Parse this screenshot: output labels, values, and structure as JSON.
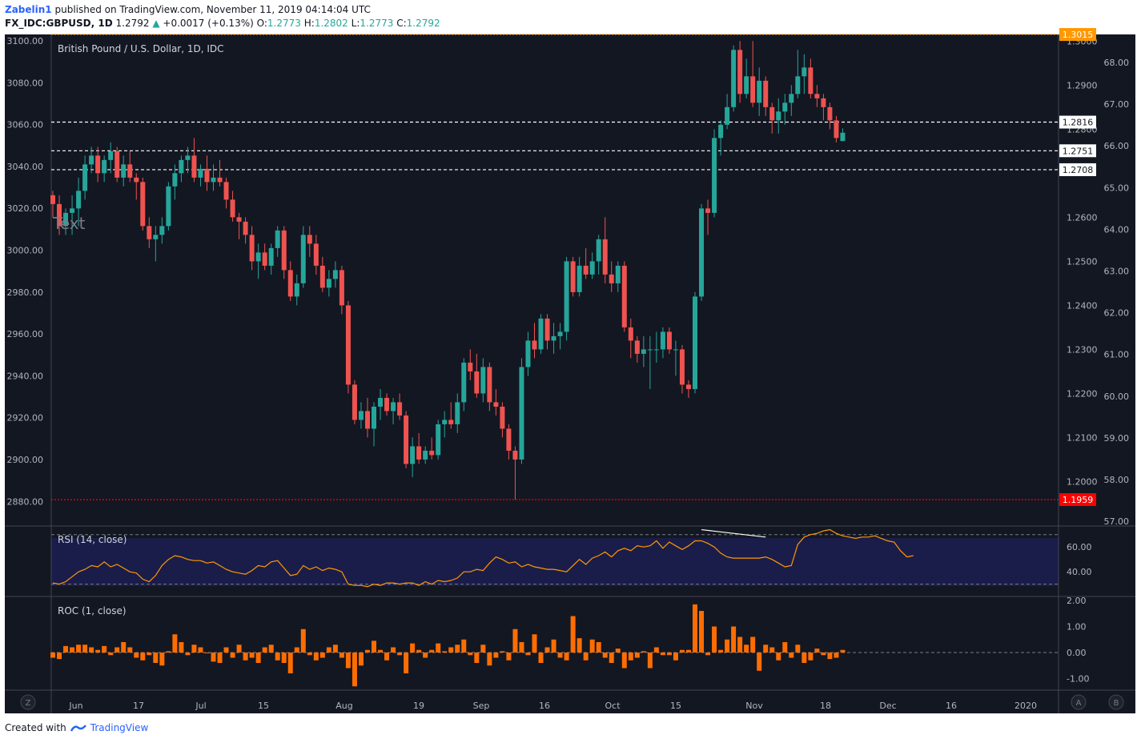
{
  "header": {
    "author": "Zabelin1",
    "published": "published on TradingView.com, November 11, 2019 04:14:04 UTC",
    "symbol": "FX_IDC:GBPUSD, 1D",
    "last": "1.2792",
    "change": "+0.0017 (+0.13%)",
    "o_label": "O:",
    "o": "1.2773",
    "h_label": "H:",
    "h": "1.2802",
    "l_label": "L:",
    "l": "1.2773",
    "c_label": "C:",
    "c": "1.2792"
  },
  "footer": {
    "created_with": "Created with",
    "brand": "TradingView"
  },
  "colors": {
    "bg": "#131722",
    "up": "#26a69a",
    "down": "#ef5350",
    "rsi": "#ff9800",
    "rsi_band": "#1a1d4a",
    "roc": "#ff6d00",
    "resistance": "#ff9800",
    "support": "#ff0000",
    "grid_text": "#b2b5be"
  },
  "chart_data": [
    {
      "type": "candlestick",
      "title": "British Pound / U.S. Dollar, 1D, IDC",
      "watermark": "Text",
      "left_axis": {
        "ticks": [
          "3100.00",
          "3080.00",
          "3060.00",
          "3040.00",
          "3020.00",
          "3000.00",
          "2980.00",
          "2960.00",
          "2940.00",
          "2920.00",
          "2900.00",
          "2880.00"
        ],
        "range": [
          2880,
          3100
        ]
      },
      "right_axis": {
        "ticks": [
          "1.3000",
          "1.2900",
          "1.2800",
          "1.2600",
          "1.2500",
          "1.2400",
          "1.2300",
          "1.2200",
          "1.2100",
          "1.2000"
        ],
        "range": [
          1.1959,
          1.3046
        ]
      },
      "rsi_axis_ticks": [
        "68.00",
        "67.00",
        "66.00",
        "65.00",
        "64.00",
        "63.00",
        "62.00",
        "61.00",
        "60.00",
        "59.00",
        "58.00",
        "57.00"
      ],
      "x_labels": [
        "Jun",
        "17",
        "Jul",
        "15",
        "Aug",
        "19",
        "Sep",
        "16",
        "Oct",
        "15",
        "Nov",
        "18",
        "Dec",
        "16",
        "2020"
      ],
      "price_lines": [
        {
          "label": "1.3015",
          "value": 1.3015,
          "style": "dotted",
          "color": "#ff9800"
        },
        {
          "label": "1.2816",
          "value": 1.2816,
          "style": "dashed",
          "color": "#ffffff"
        },
        {
          "label": "1.2751",
          "value": 1.2751,
          "style": "dashed",
          "color": "#ffffff"
        },
        {
          "label": "1.2708",
          "value": 1.2708,
          "style": "dashed",
          "color": "#ffffff"
        },
        {
          "label": "1.1959",
          "value": 1.1959,
          "style": "dotted",
          "color": "#ff0000"
        }
      ],
      "ohlc": [
        [
          1.265,
          1.266,
          1.26,
          1.263
        ],
        [
          1.263,
          1.265,
          1.256,
          1.258
        ],
        [
          1.258,
          1.262,
          1.256,
          1.261
        ],
        [
          1.261,
          1.265,
          1.256,
          1.262
        ],
        [
          1.262,
          1.269,
          1.258,
          1.266
        ],
        [
          1.266,
          1.274,
          1.264,
          1.272
        ],
        [
          1.272,
          1.276,
          1.27,
          1.274
        ],
        [
          1.274,
          1.276,
          1.268,
          1.27
        ],
        [
          1.27,
          1.274,
          1.268,
          1.273
        ],
        [
          1.273,
          1.277,
          1.27,
          1.275
        ],
        [
          1.275,
          1.276,
          1.268,
          1.269
        ],
        [
          1.269,
          1.274,
          1.267,
          1.272
        ],
        [
          1.272,
          1.275,
          1.268,
          1.269
        ],
        [
          1.269,
          1.27,
          1.264,
          1.268
        ],
        [
          1.268,
          1.269,
          1.257,
          1.258
        ],
        [
          1.258,
          1.26,
          1.253,
          1.255
        ],
        [
          1.255,
          1.258,
          1.25,
          1.256
        ],
        [
          1.256,
          1.26,
          1.254,
          1.258
        ],
        [
          1.258,
          1.268,
          1.257,
          1.267
        ],
        [
          1.267,
          1.272,
          1.264,
          1.27
        ],
        [
          1.27,
          1.274,
          1.268,
          1.273
        ],
        [
          1.273,
          1.276,
          1.27,
          1.274
        ],
        [
          1.274,
          1.278,
          1.268,
          1.269
        ],
        [
          1.269,
          1.272,
          1.267,
          1.271
        ],
        [
          1.271,
          1.274,
          1.266,
          1.268
        ],
        [
          1.268,
          1.272,
          1.266,
          1.269
        ],
        [
          1.269,
          1.273,
          1.267,
          1.268
        ],
        [
          1.268,
          1.269,
          1.262,
          1.264
        ],
        [
          1.264,
          1.266,
          1.259,
          1.26
        ],
        [
          1.26,
          1.261,
          1.255,
          1.259
        ],
        [
          1.259,
          1.26,
          1.254,
          1.256
        ],
        [
          1.256,
          1.258,
          1.248,
          1.25
        ],
        [
          1.25,
          1.254,
          1.246,
          1.252
        ],
        [
          1.252,
          1.254,
          1.248,
          1.249
        ],
        [
          1.249,
          1.254,
          1.247,
          1.253
        ],
        [
          1.253,
          1.258,
          1.251,
          1.257
        ],
        [
          1.257,
          1.258,
          1.246,
          1.248
        ],
        [
          1.248,
          1.25,
          1.241,
          1.242
        ],
        [
          1.242,
          1.247,
          1.24,
          1.245
        ],
        [
          1.245,
          1.258,
          1.244,
          1.256
        ],
        [
          1.256,
          1.258,
          1.251,
          1.254
        ],
        [
          1.254,
          1.256,
          1.247,
          1.249
        ],
        [
          1.249,
          1.251,
          1.243,
          1.244
        ],
        [
          1.244,
          1.248,
          1.242,
          1.246
        ],
        [
          1.246,
          1.25,
          1.244,
          1.248
        ],
        [
          1.248,
          1.249,
          1.238,
          1.24
        ],
        [
          1.24,
          1.241,
          1.22,
          1.222
        ],
        [
          1.222,
          1.223,
          1.213,
          1.214
        ],
        [
          1.214,
          1.218,
          1.212,
          1.216
        ],
        [
          1.216,
          1.219,
          1.21,
          1.212
        ],
        [
          1.212,
          1.218,
          1.208,
          1.217
        ],
        [
          1.217,
          1.221,
          1.214,
          1.219
        ],
        [
          1.219,
          1.22,
          1.215,
          1.216
        ],
        [
          1.216,
          1.219,
          1.213,
          1.218
        ],
        [
          1.218,
          1.22,
          1.214,
          1.215
        ],
        [
          1.215,
          1.216,
          1.203,
          1.204
        ],
        [
          1.204,
          1.21,
          1.201,
          1.208
        ],
        [
          1.208,
          1.211,
          1.204,
          1.205
        ],
        [
          1.205,
          1.208,
          1.204,
          1.207
        ],
        [
          1.207,
          1.21,
          1.205,
          1.206
        ],
        [
          1.206,
          1.214,
          1.205,
          1.213
        ],
        [
          1.213,
          1.216,
          1.21,
          1.214
        ],
        [
          1.214,
          1.218,
          1.212,
          1.213
        ],
        [
          1.213,
          1.22,
          1.211,
          1.218
        ],
        [
          1.218,
          1.228,
          1.216,
          1.227
        ],
        [
          1.227,
          1.23,
          1.223,
          1.225
        ],
        [
          1.225,
          1.229,
          1.219,
          1.22
        ],
        [
          1.22,
          1.228,
          1.218,
          1.226
        ],
        [
          1.226,
          1.227,
          1.216,
          1.218
        ],
        [
          1.218,
          1.221,
          1.215,
          1.217
        ],
        [
          1.217,
          1.218,
          1.21,
          1.212
        ],
        [
          1.212,
          1.213,
          1.205,
          1.207
        ],
        [
          1.207,
          1.208,
          1.1959,
          1.205
        ],
        [
          1.205,
          1.228,
          1.204,
          1.226
        ],
        [
          1.226,
          1.234,
          1.224,
          1.232
        ],
        [
          1.232,
          1.236,
          1.228,
          1.23
        ],
        [
          1.23,
          1.238,
          1.229,
          1.237
        ],
        [
          1.237,
          1.238,
          1.23,
          1.232
        ],
        [
          1.232,
          1.236,
          1.229,
          1.233
        ],
        [
          1.233,
          1.236,
          1.23,
          1.234
        ],
        [
          1.234,
          1.251,
          1.232,
          1.25
        ],
        [
          1.25,
          1.251,
          1.242,
          1.243
        ],
        [
          1.243,
          1.251,
          1.242,
          1.249
        ],
        [
          1.249,
          1.253,
          1.246,
          1.247
        ],
        [
          1.247,
          1.252,
          1.246,
          1.25
        ],
        [
          1.25,
          1.256,
          1.247,
          1.255
        ],
        [
          1.255,
          1.26,
          1.245,
          1.247
        ],
        [
          1.247,
          1.25,
          1.243,
          1.245
        ],
        [
          1.245,
          1.25,
          1.243,
          1.249
        ],
        [
          1.249,
          1.25,
          1.234,
          1.235
        ],
        [
          1.235,
          1.237,
          1.228,
          1.232
        ],
        [
          1.232,
          1.233,
          1.227,
          1.229
        ],
        [
          1.229,
          1.233,
          1.226,
          1.23
        ],
        [
          1.23,
          1.233,
          1.221,
          1.23
        ],
        [
          1.23,
          1.234,
          1.227,
          1.23
        ],
        [
          1.23,
          1.235,
          1.228,
          1.234
        ],
        [
          1.234,
          1.235,
          1.229,
          1.23
        ],
        [
          1.23,
          1.232,
          1.224,
          1.23
        ],
        [
          1.23,
          1.231,
          1.22,
          1.222
        ],
        [
          1.222,
          1.223,
          1.219,
          1.221
        ],
        [
          1.221,
          1.243,
          1.22,
          1.242
        ],
        [
          1.242,
          1.263,
          1.241,
          1.262
        ],
        [
          1.262,
          1.264,
          1.256,
          1.261
        ],
        [
          1.261,
          1.28,
          1.26,
          1.278
        ],
        [
          1.278,
          1.282,
          1.274,
          1.281
        ],
        [
          1.281,
          1.288,
          1.28,
          1.285
        ],
        [
          1.285,
          1.299,
          1.284,
          1.298
        ],
        [
          1.298,
          1.3,
          1.286,
          1.288
        ],
        [
          1.288,
          1.296,
          1.287,
          1.292
        ],
        [
          1.292,
          1.3,
          1.285,
          1.286
        ],
        [
          1.286,
          1.294,
          1.283,
          1.291
        ],
        [
          1.291,
          1.292,
          1.283,
          1.285
        ],
        [
          1.285,
          1.286,
          1.279,
          1.282
        ],
        [
          1.282,
          1.287,
          1.279,
          1.284
        ],
        [
          1.284,
          1.288,
          1.281,
          1.286
        ],
        [
          1.286,
          1.29,
          1.283,
          1.288
        ],
        [
          1.288,
          1.298,
          1.287,
          1.292
        ],
        [
          1.292,
          1.297,
          1.288,
          1.294
        ],
        [
          1.294,
          1.296,
          1.287,
          1.288
        ],
        [
          1.288,
          1.29,
          1.285,
          1.287
        ],
        [
          1.287,
          1.288,
          1.282,
          1.285
        ],
        [
          1.285,
          1.286,
          1.28,
          1.282
        ],
        [
          1.282,
          1.283,
          1.277,
          1.278
        ],
        [
          1.2773,
          1.2802,
          1.2773,
          1.2792
        ]
      ]
    },
    {
      "type": "line",
      "title": "RSI (14, close)",
      "y_ticks": [
        "60.00",
        "40.00"
      ],
      "levels": [
        70,
        30
      ],
      "values": [
        31,
        30,
        32,
        36,
        40,
        42,
        45,
        44,
        48,
        44,
        46,
        43,
        40,
        39,
        34,
        32,
        37,
        45,
        50,
        53,
        52,
        50,
        49,
        49,
        47,
        48,
        45,
        42,
        40,
        39,
        38,
        41,
        45,
        44,
        48,
        49,
        43,
        37,
        38,
        45,
        42,
        44,
        41,
        43,
        42,
        40,
        30,
        29,
        29,
        28,
        30,
        29,
        31,
        31,
        30,
        31,
        31,
        29,
        32,
        30,
        33,
        32,
        33,
        35,
        40,
        40,
        42,
        41,
        47,
        52,
        50,
        47,
        48,
        44,
        46,
        44,
        43,
        42,
        42,
        41,
        40,
        45,
        50,
        46,
        51,
        53,
        56,
        52,
        57,
        59,
        57,
        61,
        60,
        61,
        65,
        59,
        64,
        61,
        58,
        61,
        65,
        65,
        63,
        60,
        55,
        52,
        51,
        51,
        51,
        51,
        51,
        52,
        50,
        47,
        44,
        45,
        62,
        68,
        70,
        71,
        73,
        74,
        71,
        69,
        68,
        67,
        68,
        68,
        69,
        67,
        65,
        64,
        57,
        52,
        53
      ]
    },
    {
      "type": "bar",
      "title": "ROC (1, close)",
      "y_ticks": [
        "2.00",
        "1.00",
        "0.00",
        "-1.00"
      ],
      "values": [
        -0.2,
        -0.25,
        0.25,
        0.2,
        0.3,
        0.3,
        0.2,
        0.1,
        0.25,
        -0.1,
        0.2,
        0.4,
        0.2,
        -0.2,
        -0.3,
        -0.1,
        -0.4,
        -0.5,
        0.05,
        0.7,
        0.4,
        -0.1,
        0.3,
        0.2,
        0.0,
        -0.35,
        -0.4,
        0.2,
        -0.2,
        0.3,
        -0.3,
        -0.2,
        -0.4,
        0.2,
        0.3,
        -0.3,
        -0.4,
        -0.8,
        0.2,
        0.9,
        -0.1,
        -0.3,
        -0.2,
        0.2,
        0.3,
        -0.2,
        -0.6,
        -1.3,
        -0.5,
        0.1,
        0.45,
        0.1,
        -0.3,
        0.2,
        -0.1,
        -0.8,
        0.35,
        0.1,
        -0.2,
        0.1,
        0.35,
        0.05,
        0.2,
        0.3,
        0.5,
        -0.1,
        -0.4,
        0.3,
        -0.5,
        -0.2,
        0.05,
        -0.3,
        0.9,
        0.4,
        -0.1,
        0.7,
        -0.4,
        0.2,
        0.5,
        -0.2,
        -0.3,
        1.4,
        0.55,
        -0.3,
        0.5,
        0.4,
        -0.2,
        -0.4,
        0.15,
        -0.6,
        -0.3,
        -0.2,
        0.05,
        -0.6,
        0.2,
        -0.1,
        -0.1,
        -0.3,
        0.1,
        0.1,
        1.85,
        1.6,
        -0.1,
        1.0,
        0.1,
        0.5,
        1.0,
        0.6,
        0.3,
        0.6,
        -0.7,
        0.3,
        0.2,
        -0.3,
        0.4,
        -0.2,
        0.3,
        -0.4,
        -0.3,
        0.15,
        -0.1,
        -0.25,
        -0.2,
        0.1
      ]
    }
  ],
  "pane_controls": {
    "z_button": "Z",
    "a_button": "A",
    "b_button": "B"
  }
}
